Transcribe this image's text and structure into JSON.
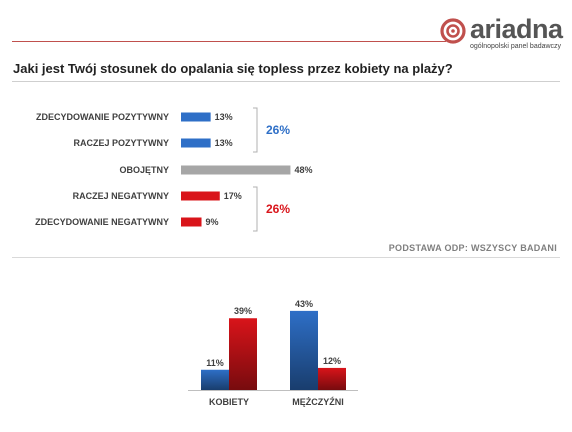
{
  "brand": {
    "name": "ariadna",
    "tagline": "ogólnopolski panel badawczy",
    "color": "#c0504d"
  },
  "question": "Jaki jest Twój stosunek do opalania się topless przez kobiety na plaży?",
  "basis": "PODSTAWA ODP: WSZYSCY BADANI",
  "chart_data": [
    {
      "type": "bar",
      "orientation": "horizontal",
      "categories": [
        "ZDECYDOWANIE POZYTYWNY",
        "RACZEJ POZYTYWNY",
        "OBOJĘTNY",
        "RACZEJ NEGATYWNY",
        "ZDECYDOWANIE NEGATYWNY"
      ],
      "values": [
        13,
        13,
        48,
        17,
        9
      ],
      "labels": [
        "13%",
        "13%",
        "48%",
        "17%",
        "9%"
      ],
      "colors": [
        "#2e6fc7",
        "#2e6fc7",
        "#a6a6a6",
        "#d9141a",
        "#d9141a"
      ],
      "xlim": [
        0,
        100
      ],
      "groups": [
        {
          "label": "26%",
          "from": 0,
          "to": 1,
          "color": "#2e6fc7"
        },
        {
          "label": "26%",
          "from": 3,
          "to": 4,
          "color": "#d9141a"
        }
      ]
    },
    {
      "type": "bar",
      "orientation": "vertical",
      "categories": [
        "KOBIETY",
        "MĘŻCZYŹNI"
      ],
      "series": [
        {
          "values": [
            11,
            43
          ],
          "labels": [
            "11%",
            "43%"
          ],
          "color": "#2e6fc7"
        },
        {
          "values": [
            39,
            12
          ],
          "labels": [
            "39%",
            "12%"
          ],
          "color": "#d9141a"
        }
      ],
      "ylim": [
        0,
        45
      ]
    }
  ]
}
